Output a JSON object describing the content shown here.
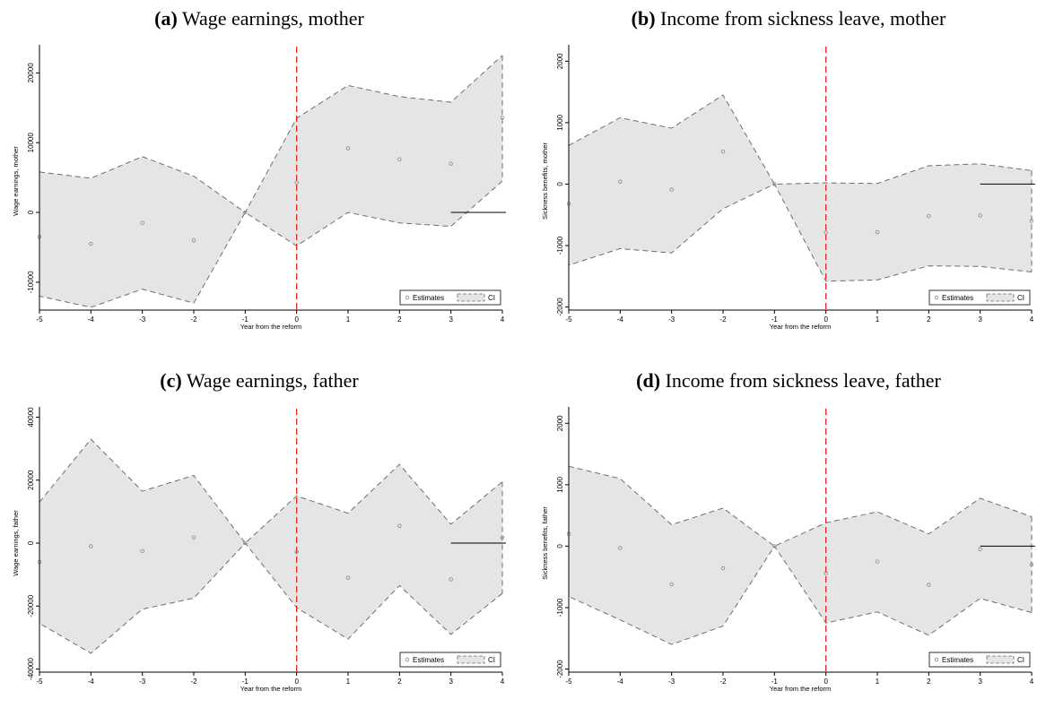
{
  "chart_data": [
    {
      "type": "line",
      "panel_tag": "(a)",
      "title": "Wage earnings, mother",
      "xlabel": "Year from the reform",
      "ylabel": "Wage earnings, mother",
      "x": [
        -5,
        -4,
        -3,
        -2,
        -1,
        0,
        1,
        2,
        3,
        4
      ],
      "xlim": [
        -5,
        4
      ],
      "ylim": [
        -14000,
        23000
      ],
      "yticks": [
        -10000,
        0,
        10000,
        20000
      ],
      "ref_x": 0,
      "series": [
        {
          "name": "Estimates",
          "values": [
            -3500,
            -4500,
            -1500,
            -4000,
            0,
            4300,
            9200,
            7600,
            7000,
            13600
          ]
        },
        {
          "name": "CI",
          "lower": [
            -12000,
            -13600,
            -11000,
            -13000,
            0,
            -4800,
            0,
            -1500,
            -2000,
            4500
          ],
          "upper": [
            5800,
            4900,
            8000,
            5200,
            0,
            13500,
            18200,
            16600,
            15800,
            22500
          ]
        }
      ],
      "legend": {
        "estimates": "Estimates",
        "ci": "CI",
        "position": "bottom-right"
      }
    },
    {
      "type": "line",
      "panel_tag": "(b)",
      "title": "Income from sickness leave, mother",
      "xlabel": "Year from the reform",
      "ylabel": "Sickness benefits, mother",
      "x": [
        -5,
        -4,
        -3,
        -2,
        -1,
        0,
        1,
        2,
        3,
        4
      ],
      "xlim": [
        -5,
        4
      ],
      "ylim": [
        -2050,
        2150
      ],
      "yticks": [
        -2000,
        -1000,
        0,
        1000,
        2000
      ],
      "ref_x": 0,
      "series": [
        {
          "name": "Estimates",
          "values": [
            -320,
            40,
            -90,
            530,
            0,
            -790,
            -780,
            -520,
            -510,
            -600
          ]
        },
        {
          "name": "CI",
          "lower": [
            -1320,
            -1050,
            -1120,
            -400,
            0,
            -1580,
            -1560,
            -1330,
            -1340,
            -1430
          ],
          "upper": [
            630,
            1080,
            910,
            1450,
            0,
            20,
            10,
            300,
            330,
            220
          ]
        }
      ],
      "legend": {
        "estimates": "Estimates",
        "ci": "CI",
        "position": "bottom-right"
      }
    },
    {
      "type": "line",
      "panel_tag": "(c)",
      "title": "Wage earnings, father",
      "xlabel": "Year from the reform",
      "ylabel": "Wage earnings, father",
      "x": [
        -5,
        -4,
        -3,
        -2,
        -1,
        0,
        1,
        2,
        3,
        4
      ],
      "xlim": [
        -5,
        4
      ],
      "ylim": [
        -41000,
        41000
      ],
      "yticks": [
        -40000,
        -20000,
        0,
        20000,
        40000
      ],
      "ref_x": 0,
      "series": [
        {
          "name": "Estimates",
          "values": [
            -6000,
            -1000,
            -2500,
            1800,
            0,
            -2800,
            -11000,
            5500,
            -11500,
            1800
          ]
        },
        {
          "name": "CI",
          "lower": [
            -25500,
            -35000,
            -21000,
            -17500,
            0,
            -20500,
            -30500,
            -13500,
            -29000,
            -16000
          ],
          "upper": [
            13000,
            33000,
            16500,
            21500,
            0,
            15000,
            9500,
            25000,
            6000,
            19500
          ]
        }
      ],
      "legend": {
        "estimates": "Estimates",
        "ci": "CI",
        "position": "bottom-right"
      }
    },
    {
      "type": "line",
      "panel_tag": "(d)",
      "title": "Income from sickness leave, father",
      "xlabel": "Year from the reform",
      "ylabel": "Sickness benefits, father",
      "x": [
        -5,
        -4,
        -3,
        -2,
        -1,
        0,
        1,
        2,
        3,
        4
      ],
      "xlim": [
        -5,
        4
      ],
      "ylim": [
        -2050,
        2150
      ],
      "yticks": [
        -2000,
        -1000,
        0,
        1000,
        2000
      ],
      "ref_x": 0,
      "series": [
        {
          "name": "Estimates",
          "values": [
            200,
            -30,
            -620,
            -360,
            0,
            -440,
            -250,
            -630,
            -50,
            -300
          ]
        },
        {
          "name": "CI",
          "lower": [
            -820,
            -1200,
            -1600,
            -1300,
            0,
            -1250,
            -1070,
            -1450,
            -850,
            -1080
          ],
          "upper": [
            1300,
            1100,
            350,
            620,
            0,
            380,
            560,
            200,
            780,
            480
          ]
        }
      ],
      "legend": {
        "estimates": "Estimates",
        "ci": "CI",
        "position": "bottom-right"
      }
    }
  ]
}
